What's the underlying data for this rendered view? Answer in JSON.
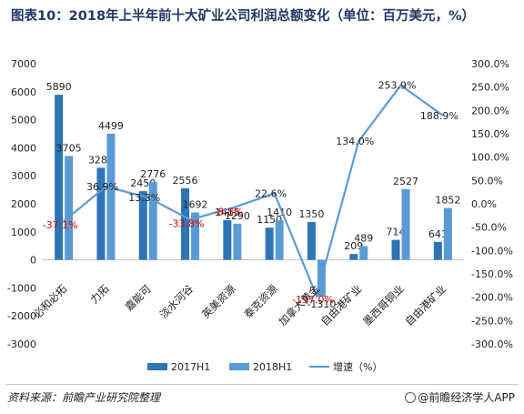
{
  "title": "图表10：2018年上半年前十大矿业公司利润总额变化（单位：百万美元，%）",
  "source": "资料来源：前瞻产业研究院整理",
  "brand": "@前瞻经济学人APP",
  "chart_data": {
    "type": "bar",
    "categories": [
      "必和必拓",
      "力拓",
      "嘉能可",
      "淡水河谷",
      "英美资源",
      "泰克资源",
      "加拿大黄金",
      "自由港矿业",
      "墨西哥铜业",
      "自由港矿业"
    ],
    "series": [
      {
        "name": "2017H1",
        "type": "bar",
        "axis": "left",
        "color": "#2e75b6",
        "values": [
          5890,
          3287,
          2450,
          2556,
          1415,
          1150,
          1350,
          209,
          714,
          641
        ]
      },
      {
        "name": "2018H1",
        "type": "bar",
        "axis": "left",
        "color": "#5b9bd5",
        "values": [
          3705,
          4499,
          2776,
          1692,
          1290,
          1410,
          -1310,
          489,
          2527,
          1852
        ]
      },
      {
        "name": "增速（%）",
        "type": "line",
        "axis": "right",
        "color": "#5b9bd5",
        "values": [
          -37.1,
          36.9,
          13.3,
          -33.8,
          -8.8,
          22.6,
          -197.0,
          134.0,
          253.9,
          188.9
        ]
      }
    ],
    "bar_labels_2017": [
      "5890",
      "3287",
      "2450",
      "2556",
      "1415",
      "1150",
      "1350",
      "209",
      "714",
      "641"
    ],
    "bar_labels_2018": [
      "3705",
      "4499",
      "2776",
      "1692",
      "1290",
      "1410",
      "-1310",
      "489",
      "2527",
      "1852"
    ],
    "line_labels": [
      "-37.1%",
      "36.9%",
      "13.3%",
      "-33.8%",
      "-8.8%",
      "22.6%",
      "-197.0%",
      "134.0%",
      "253.9%",
      "188.9%"
    ],
    "negative_label_color": "#e00000",
    "left_axis": {
      "min": -3000,
      "max": 7000,
      "ticks": [
        "-3000",
        "-2000",
        "-1000",
        "0",
        "1000",
        "2000",
        "3000",
        "4000",
        "5000",
        "6000",
        "7000"
      ]
    },
    "right_axis": {
      "min": -300,
      "max": 300,
      "ticks": [
        "-300.0%",
        "-250.0%",
        "-200.0%",
        "-150.0%",
        "-100.0%",
        "-50.0%",
        "0.0%",
        "50.0%",
        "100.0%",
        "150.0%",
        "200.0%",
        "250.0%",
        "300.0%"
      ]
    },
    "legend": [
      "2017H1",
      "2018H1",
      "增速（%）"
    ],
    "legend_position": "bottom",
    "grid": false
  }
}
